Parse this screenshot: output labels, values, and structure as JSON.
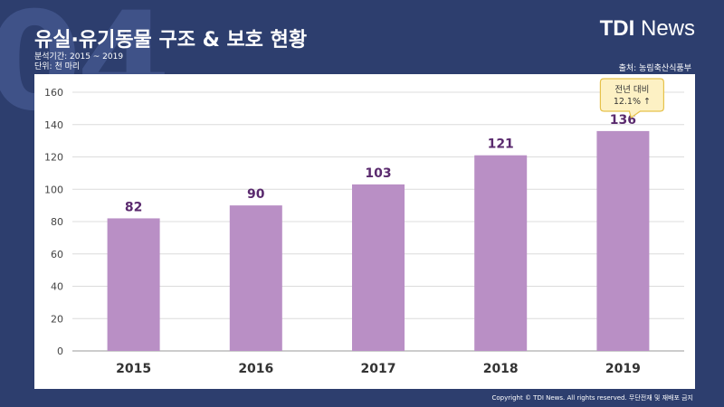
{
  "header": {
    "bg_number": "04",
    "title": "유실·유기동물 구조 & 보호 현황",
    "period": "분석기간: 2015 ~ 2019",
    "unit": "단위: 천 마리",
    "logo_bold": "TDI",
    "logo_light": "News",
    "source": "출처: 농림축산식품부"
  },
  "footer": {
    "copyright": "Copyright © TDI News. All rights reserved. 무단전재 및 재배포 금지"
  },
  "colors": {
    "background": "#2d3e6e",
    "bar": "#b98fc5",
    "value_label": "#5a2a6e",
    "callout_fill": "#fdf1c4",
    "callout_stroke": "#e6c24c"
  },
  "chart_data": {
    "type": "bar",
    "categories": [
      "2015",
      "2016",
      "2017",
      "2018",
      "2019"
    ],
    "values": [
      82,
      90,
      103,
      121,
      136
    ],
    "data_labels": [
      "82",
      "90",
      "103",
      "121",
      "136"
    ],
    "title": "",
    "xlabel": "",
    "ylabel": "",
    "ylim": [
      0,
      160
    ],
    "yticks": [
      0,
      20,
      40,
      60,
      80,
      100,
      120,
      140,
      160
    ],
    "grid": true,
    "annotation": {
      "category": "2019",
      "line1": "전년 대비",
      "line2": "12.1% ↑"
    }
  }
}
